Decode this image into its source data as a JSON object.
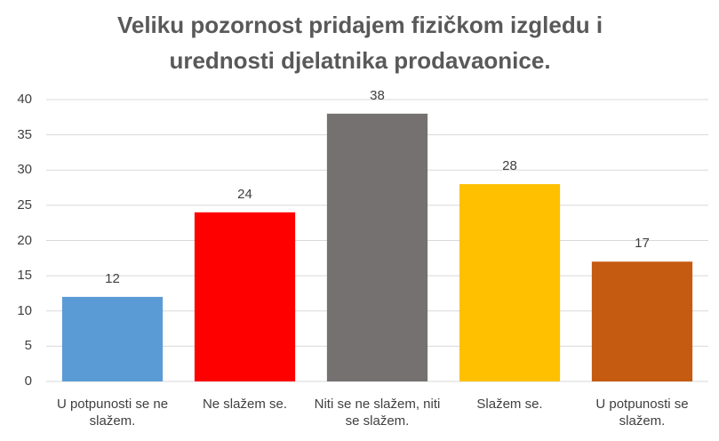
{
  "chart_data": {
    "type": "bar",
    "title": "Veliku pozornost pridajem fizičkom izgledu i urednosti djelatnika prodavaonice.",
    "categories": [
      "U potpunosti se ne slažem.",
      "Ne slažem se.",
      "Niti se ne slažem, niti se slažem.",
      "Slažem se.",
      "U potpunosti se slažem."
    ],
    "values": [
      12,
      24,
      38,
      28,
      17
    ],
    "colors": [
      "#5b9bd5",
      "#ff0000",
      "#767171",
      "#ffc000",
      "#c55a11"
    ],
    "ylim": [
      0,
      40
    ],
    "yticks": [
      0,
      5,
      10,
      15,
      20,
      25,
      30,
      35,
      40
    ],
    "grid": true
  }
}
